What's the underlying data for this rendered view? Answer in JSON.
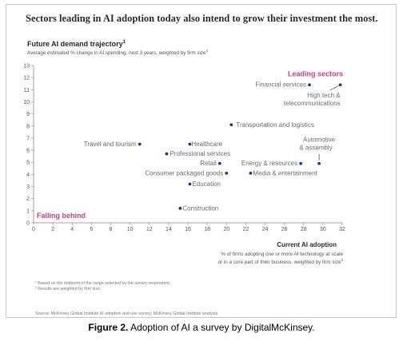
{
  "headline": "Sectors leading in AI adoption today also intend to grow their investment the most.",
  "chart_data": {
    "type": "scatter",
    "title": "Future AI demand trajectory",
    "title_mark": "1",
    "subtitle": "Average estimated % change in AI spending, next 3 years, weighted by firm size",
    "subtitle_mark": "2",
    "xlabel": "Current AI adoption",
    "xlabel_sub": [
      "% of firms adopting one or more AI technology at scale",
      "or in a core part of their business, weighted by firm size"
    ],
    "xlabel_sub_mark": "2",
    "xlim": [
      0,
      32
    ],
    "ylim": [
      0,
      13
    ],
    "xticks": [
      0,
      2,
      4,
      6,
      8,
      10,
      12,
      14,
      16,
      18,
      20,
      22,
      24,
      26,
      28,
      30,
      32
    ],
    "yticks": [
      0,
      1,
      2,
      3,
      4,
      5,
      6,
      7,
      8,
      9,
      10,
      11,
      12,
      13
    ],
    "grid": false,
    "points": [
      {
        "name": "Financial services",
        "x": 28.6,
        "y": 11.4
      },
      {
        "name": "High tech & telecommunications",
        "x": 31.8,
        "y": 11.4
      },
      {
        "name": "Transportation and logistics",
        "x": 20.5,
        "y": 8.1
      },
      {
        "name": "Travel and tourism",
        "x": 11.0,
        "y": 6.5
      },
      {
        "name": "Healthcare",
        "x": 16.2,
        "y": 6.5
      },
      {
        "name": "Professional services",
        "x": 13.8,
        "y": 5.7
      },
      {
        "name": "Retail",
        "x": 19.3,
        "y": 4.9
      },
      {
        "name": "Energy & resources",
        "x": 27.7,
        "y": 4.9
      },
      {
        "name": "Automotive & assembly",
        "x": 29.6,
        "y": 4.9
      },
      {
        "name": "Consumer packaged goods",
        "x": 20.0,
        "y": 4.1
      },
      {
        "name": "Media & entertainment",
        "x": 22.5,
        "y": 4.1
      },
      {
        "name": "Education",
        "x": 16.2,
        "y": 3.2
      },
      {
        "name": "Construction",
        "x": 15.2,
        "y": 1.2
      }
    ],
    "annotations": [
      {
        "text": "Leading sectors",
        "color": "#c2408d"
      },
      {
        "text": "Falling behind",
        "color": "#c2408d"
      }
    ],
    "point_color": "#1f3b73",
    "axis_color": "#888888",
    "tick_color": "#555555",
    "label_color": "#6d6d6d"
  },
  "footnotes": [
    "¹ Based on the midpoint of the range selected by the survey respondent.",
    "² Results are weighted by firm size."
  ],
  "source": "Source: McKinsey Global Institute AI adoption and use survey; McKinsey Global Institute analysis",
  "caption": {
    "label": "Figure 2.",
    "text": " Adoption of AI a survey by DigitalMcKinsey."
  }
}
